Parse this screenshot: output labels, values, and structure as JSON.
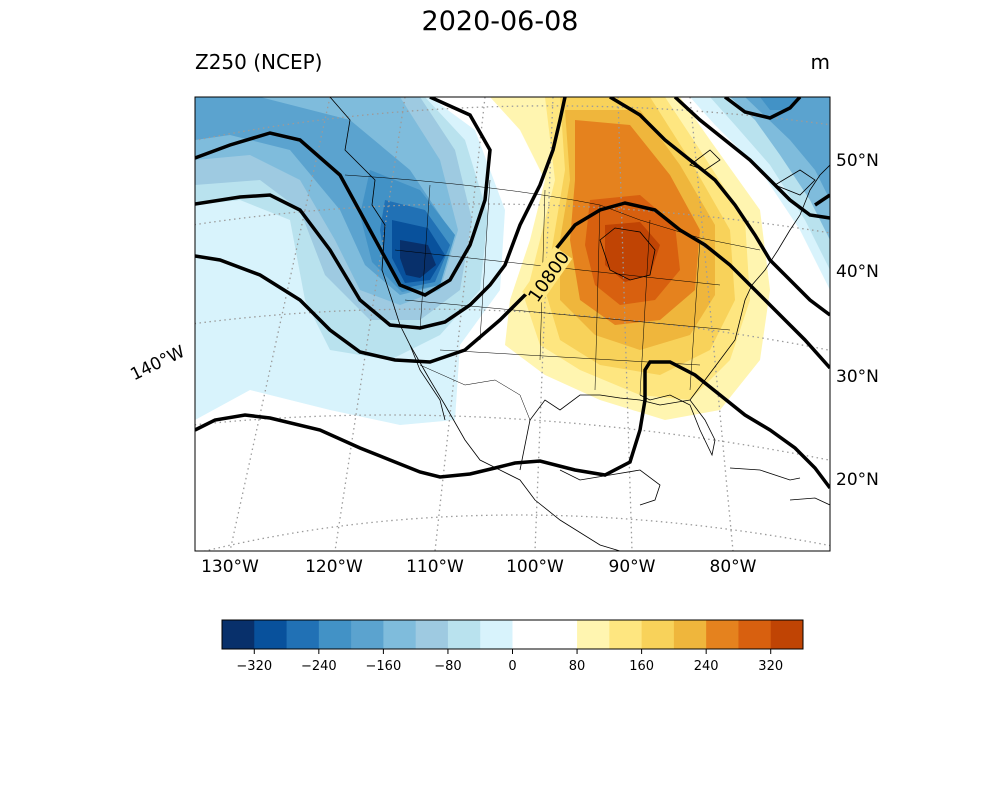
{
  "figure": {
    "title": "2020-06-08",
    "subtitle": "Z250 (NCEP)",
    "units": "m"
  },
  "map": {
    "lon_labels": [
      "130°W",
      "120°W",
      "110°W",
      "100°W",
      "90°W",
      "80°W"
    ],
    "lat_labels": [
      "50°N",
      "40°N",
      "30°N",
      "20°N"
    ],
    "edge_label": "140°W",
    "contour_label": "10800"
  },
  "colorbar": {
    "ticks": [
      "−320",
      "−240",
      "−160",
      "−80",
      "0",
      "80",
      "160",
      "240",
      "320"
    ],
    "min": -360,
    "max": 360,
    "step": 40,
    "colors": [
      "#08306b",
      "#08519c",
      "#2171b5",
      "#4292c6",
      "#5ba3cf",
      "#7fbcdc",
      "#9ecae1",
      "#b9e2ee",
      "#d8f3fc",
      "#ffffff",
      "#ffffff",
      "#fff5b0",
      "#fee680",
      "#f8d25a",
      "#efb63c",
      "#e5821e",
      "#d8600f",
      "#c04404"
    ]
  }
}
